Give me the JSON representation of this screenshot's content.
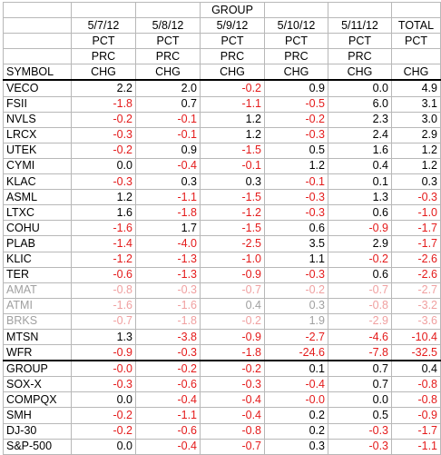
{
  "header": {
    "group_label": "GROUP",
    "symbol_label": "SYMBOL",
    "dates": [
      "5/7/12",
      "5/8/12",
      "5/9/12",
      "5/10/12",
      "5/11/12"
    ],
    "total_label": "TOTAL",
    "pct_label": "PCT",
    "prc_label": "PRC",
    "chg_label": "CHG"
  },
  "colors": {
    "negative": "#e41b1b",
    "positive": "#000000"
  },
  "rows": [
    {
      "s": "VECO",
      "v": [
        "2.2",
        "2.0",
        "-0.2",
        "0.9",
        "0.0",
        "4.9"
      ]
    },
    {
      "s": "FSII",
      "v": [
        "-1.8",
        "0.7",
        "-1.1",
        "-0.5",
        "6.0",
        "3.1"
      ]
    },
    {
      "s": "NVLS",
      "v": [
        "-0.2",
        "-0.1",
        "1.2",
        "-0.2",
        "2.3",
        "3.0"
      ]
    },
    {
      "s": "LRCX",
      "v": [
        "-0.3",
        "-0.1",
        "1.2",
        "-0.3",
        "2.4",
        "2.9"
      ]
    },
    {
      "s": "UTEK",
      "v": [
        "-0.2",
        "0.9",
        "-1.5",
        "0.5",
        "1.6",
        "1.2"
      ]
    },
    {
      "s": "CYMI",
      "v": [
        "0.0",
        "-0.4",
        "-0.1",
        "1.2",
        "0.4",
        "1.2"
      ]
    },
    {
      "s": "KLAC",
      "v": [
        "-0.3",
        "0.3",
        "0.3",
        "-0.1",
        "0.1",
        "0.3"
      ]
    },
    {
      "s": "ASML",
      "v": [
        "1.2",
        "-1.1",
        "-1.5",
        "-0.3",
        "1.3",
        "-0.3"
      ]
    },
    {
      "s": "LTXC",
      "v": [
        "1.6",
        "-1.8",
        "-1.2",
        "-0.3",
        "0.6",
        "-1.0"
      ]
    },
    {
      "s": "COHU",
      "v": [
        "-1.6",
        "1.7",
        "-1.5",
        "0.6",
        "-0.9",
        "-1.7"
      ]
    },
    {
      "s": "PLAB",
      "v": [
        "-1.4",
        "-4.0",
        "-2.5",
        "3.5",
        "2.9",
        "-1.7"
      ]
    },
    {
      "s": "KLIC",
      "v": [
        "-1.2",
        "-1.3",
        "-1.0",
        "1.1",
        "-0.2",
        "-2.6"
      ]
    },
    {
      "s": "TER",
      "v": [
        "-0.6",
        "-1.3",
        "-0.9",
        "-0.3",
        "0.6",
        "-2.6"
      ]
    },
    {
      "s": "AMAT",
      "v": [
        "-0.8",
        "-0.3",
        "-0.7",
        "-0.2",
        "-0.7",
        "-2.7"
      ],
      "faded": true
    },
    {
      "s": "ATMI",
      "v": [
        "-1.6",
        "-1.6",
        "0.4",
        "0.3",
        "-0.8",
        "-3.2"
      ],
      "faded": true
    },
    {
      "s": "BRKS",
      "v": [
        "-0.7",
        "-1.8",
        "-0.2",
        "1.9",
        "-2.9",
        "-3.6"
      ],
      "faded": true
    },
    {
      "s": "MTSN",
      "v": [
        "1.3",
        "-3.8",
        "-0.9",
        "-2.7",
        "-4.6",
        "-10.4"
      ]
    },
    {
      "s": "WFR",
      "v": [
        "-0.9",
        "-0.3",
        "-1.8",
        "-24.6",
        "-7.8",
        "-32.5"
      ]
    }
  ],
  "index_rows": [
    {
      "s": "GROUP",
      "v": [
        "-0.0",
        "-0.2",
        "-0.2",
        "0.1",
        "0.7",
        "0.4"
      ]
    },
    {
      "s": "SOX-X",
      "v": [
        "-0.3",
        "-0.6",
        "-0.3",
        "-0.4",
        "0.7",
        "-0.8"
      ]
    },
    {
      "s": "COMPQX",
      "v": [
        "0.0",
        "-0.4",
        "-0.4",
        "-0.0",
        "0.0",
        "-0.8"
      ]
    },
    {
      "s": "SMH",
      "v": [
        "-0.2",
        "-1.1",
        "-0.4",
        "0.2",
        "0.5",
        "-0.9"
      ]
    },
    {
      "s": "DJ-30",
      "v": [
        "-0.2",
        "-0.6",
        "-0.8",
        "0.2",
        "-0.3",
        "-1.7"
      ]
    },
    {
      "s": "S&P-500",
      "v": [
        "0.0",
        "-0.4",
        "-0.7",
        "0.3",
        "-0.3",
        "-1.1"
      ]
    }
  ]
}
